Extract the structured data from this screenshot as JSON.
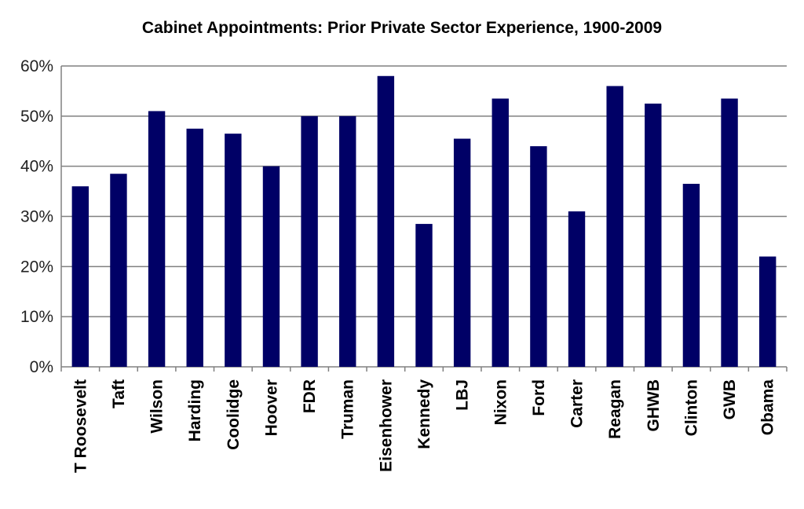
{
  "chart_data": {
    "type": "bar",
    "title": "Cabinet Appointments: Prior Private Sector Experience, 1900-2009",
    "xlabel": "",
    "ylabel": "",
    "categories": [
      "T Roosevelt",
      "Taft",
      "Wilson",
      "Harding",
      "Coolidge",
      "Hoover",
      "FDR",
      "Truman",
      "Eisenhower",
      "Kennedy",
      "LBJ",
      "Nixon",
      "Ford",
      "Carter",
      "Reagan",
      "GHWB",
      "Clinton",
      "GWB",
      "Obama"
    ],
    "values": [
      36,
      38.5,
      51,
      47.5,
      46.5,
      40,
      50,
      50,
      58,
      28.5,
      45.5,
      53.5,
      44,
      31,
      56,
      52.5,
      36.5,
      53.5,
      22
    ],
    "value_unit": "percent",
    "ylim": [
      0,
      60
    ],
    "yticks": [
      "0%",
      "10%",
      "20%",
      "30%",
      "40%",
      "50%",
      "60%"
    ],
    "grid": true,
    "legend": "none",
    "colors": {
      "bar": "#000066",
      "grid": "#808080",
      "axis": "#808080"
    }
  }
}
